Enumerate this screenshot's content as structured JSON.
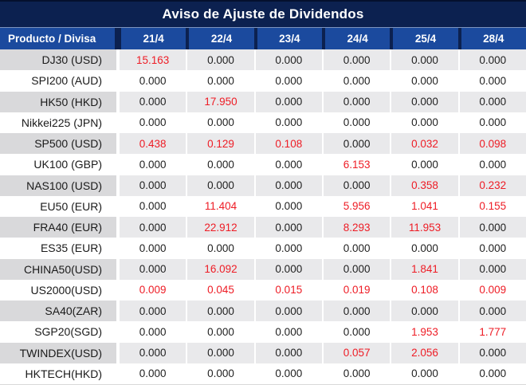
{
  "title": "Aviso de Ajuste de Dividendos",
  "table": {
    "product_header": "Producto / Divisa",
    "date_columns": [
      "21/4",
      "22/4",
      "23/4",
      "24/4",
      "25/4",
      "28/4"
    ],
    "zero_value": "0.000",
    "rows": [
      {
        "product": "DJ30 (USD)",
        "values": [
          "15.163",
          "0.000",
          "0.000",
          "0.000",
          "0.000",
          "0.000"
        ]
      },
      {
        "product": "SPI200 (AUD)",
        "values": [
          "0.000",
          "0.000",
          "0.000",
          "0.000",
          "0.000",
          "0.000"
        ]
      },
      {
        "product": "HK50 (HKD)",
        "values": [
          "0.000",
          "17.950",
          "0.000",
          "0.000",
          "0.000",
          "0.000"
        ]
      },
      {
        "product": "Nikkei225 (JPN)",
        "values": [
          "0.000",
          "0.000",
          "0.000",
          "0.000",
          "0.000",
          "0.000"
        ]
      },
      {
        "product": "SP500 (USD)",
        "values": [
          "0.438",
          "0.129",
          "0.108",
          "0.000",
          "0.032",
          "0.098"
        ]
      },
      {
        "product": "UK100 (GBP)",
        "values": [
          "0.000",
          "0.000",
          "0.000",
          "6.153",
          "0.000",
          "0.000"
        ]
      },
      {
        "product": "NAS100 (USD)",
        "values": [
          "0.000",
          "0.000",
          "0.000",
          "0.000",
          "0.358",
          "0.232"
        ]
      },
      {
        "product": "EU50 (EUR)",
        "values": [
          "0.000",
          "11.404",
          "0.000",
          "5.956",
          "1.041",
          "0.155"
        ]
      },
      {
        "product": "FRA40 (EUR)",
        "values": [
          "0.000",
          "22.912",
          "0.000",
          "8.293",
          "11.953",
          "0.000"
        ]
      },
      {
        "product": "ES35 (EUR)",
        "values": [
          "0.000",
          "0.000",
          "0.000",
          "0.000",
          "0.000",
          "0.000"
        ]
      },
      {
        "product": "CHINA50(USD)",
        "values": [
          "0.000",
          "16.092",
          "0.000",
          "0.000",
          "1.841",
          "0.000"
        ]
      },
      {
        "product": "US2000(USD)",
        "values": [
          "0.009",
          "0.045",
          "0.015",
          "0.019",
          "0.108",
          "0.009"
        ]
      },
      {
        "product": "SA40(ZAR)",
        "values": [
          "0.000",
          "0.000",
          "0.000",
          "0.000",
          "0.000",
          "0.000"
        ]
      },
      {
        "product": "SGP20(SGD)",
        "values": [
          "0.000",
          "0.000",
          "0.000",
          "0.000",
          "1.953",
          "1.777"
        ]
      },
      {
        "product": "TWINDEX(USD)",
        "values": [
          "0.000",
          "0.000",
          "0.000",
          "0.057",
          "2.056",
          "0.000"
        ]
      },
      {
        "product": "HKTECH(HKD)",
        "values": [
          "0.000",
          "0.000",
          "0.000",
          "0.000",
          "0.000",
          "0.000"
        ]
      }
    ]
  },
  "colors": {
    "title_bar_bg": "#0c2150",
    "header_cell_bg": "#1b4a9e",
    "header_text": "#ffffff",
    "alt_row_product_bg": "#d9d9db",
    "alt_row_data_bg": "#e9e9eb",
    "value_default": "#1f1f1f",
    "value_highlight": "#ee1c25"
  }
}
